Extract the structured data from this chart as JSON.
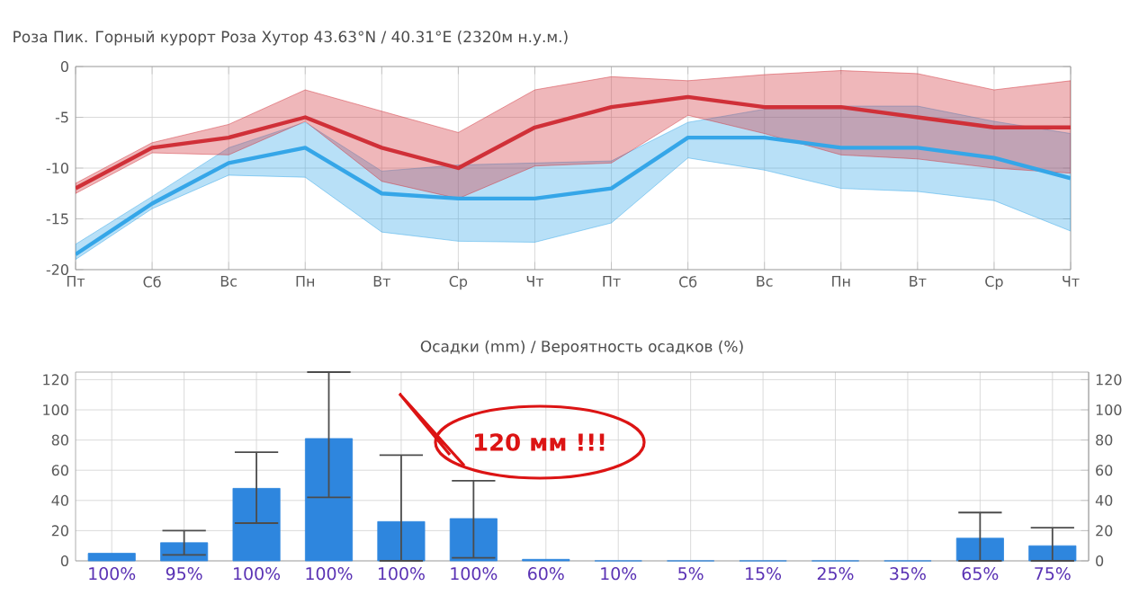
{
  "chart_data": [
    {
      "type": "line",
      "title": "Роза Пик. Горный курорт Роза Хутор  43.63°N / 40.31°E (2320м н.у.м.)",
      "categories": [
        "Пт",
        "Сб",
        "Вс",
        "Пн",
        "Вт",
        "Ср",
        "Чт",
        "Пт",
        "Сб",
        "Вс",
        "Пн",
        "Вт",
        "Ср",
        "Чт"
      ],
      "ylim": [
        -20,
        0
      ],
      "yticks": [
        0,
        -5,
        -10,
        -15,
        -20
      ],
      "grid": true,
      "series": [
        {
          "color": "#35a6e8",
          "values": [
            -18.5,
            -13.5,
            -9.5,
            -8,
            -12.5,
            -13,
            -13,
            -12,
            -7,
            -7,
            -8,
            -8,
            -9,
            -11
          ],
          "lower": [
            -19,
            -14,
            -10.7,
            -10.9,
            -16.3,
            -17.2,
            -17.3,
            -15.4,
            -9,
            -10.2,
            -12,
            -12.3,
            -13.2,
            -16.2
          ],
          "upper": [
            -17.5,
            -12.8,
            -8,
            -5.5,
            -10.3,
            -9.7,
            -9.5,
            -9.3,
            -5.5,
            -4.2,
            -3.9,
            -3.9,
            -5.4,
            -6.6
          ]
        },
        {
          "color": "#d03038",
          "values": [
            -12,
            -8,
            -7,
            -5,
            -8,
            -10,
            -6,
            -4,
            -3,
            -4,
            -4,
            -5,
            -6,
            -6
          ],
          "lower": [
            -12.5,
            -8.5,
            -8.7,
            -5.4,
            -11.3,
            -13,
            -9.8,
            -9.5,
            -4.8,
            -6.6,
            -8.7,
            -9.1,
            -10,
            -10.5
          ],
          "upper": [
            -11.5,
            -7.5,
            -5.7,
            -2.3,
            -4.4,
            -6.5,
            -2.3,
            -1,
            -1.4,
            -0.8,
            -0.4,
            -0.7,
            -2.3,
            -1.4
          ]
        }
      ]
    },
    {
      "type": "bar",
      "title": "Осадки (mm) / Вероятность осадков (%)",
      "categories": [
        "100%",
        "95%",
        "100%",
        "100%",
        "100%",
        "100%",
        "60%",
        "10%",
        "5%",
        "15%",
        "25%",
        "35%",
        "65%",
        "75%"
      ],
      "values": [
        5,
        12,
        48,
        81,
        26,
        28,
        1,
        0,
        0,
        0,
        0,
        0,
        15,
        10
      ],
      "color": "#2e86de",
      "errors": [
        null,
        [
          4,
          20
        ],
        [
          25,
          72
        ],
        [
          42,
          125
        ],
        [
          0,
          70
        ],
        [
          2,
          53
        ],
        null,
        null,
        null,
        null,
        null,
        null,
        [
          0,
          32
        ],
        [
          0,
          22
        ]
      ],
      "ylim": [
        0,
        125
      ],
      "yticks": [
        0,
        20,
        40,
        60,
        80,
        100,
        120
      ],
      "y2lim": [
        0,
        125
      ],
      "y2ticks": [
        0,
        20,
        40,
        60,
        80,
        100,
        120
      ],
      "grid": true,
      "annotations": [
        "120 мм !!!"
      ]
    }
  ]
}
